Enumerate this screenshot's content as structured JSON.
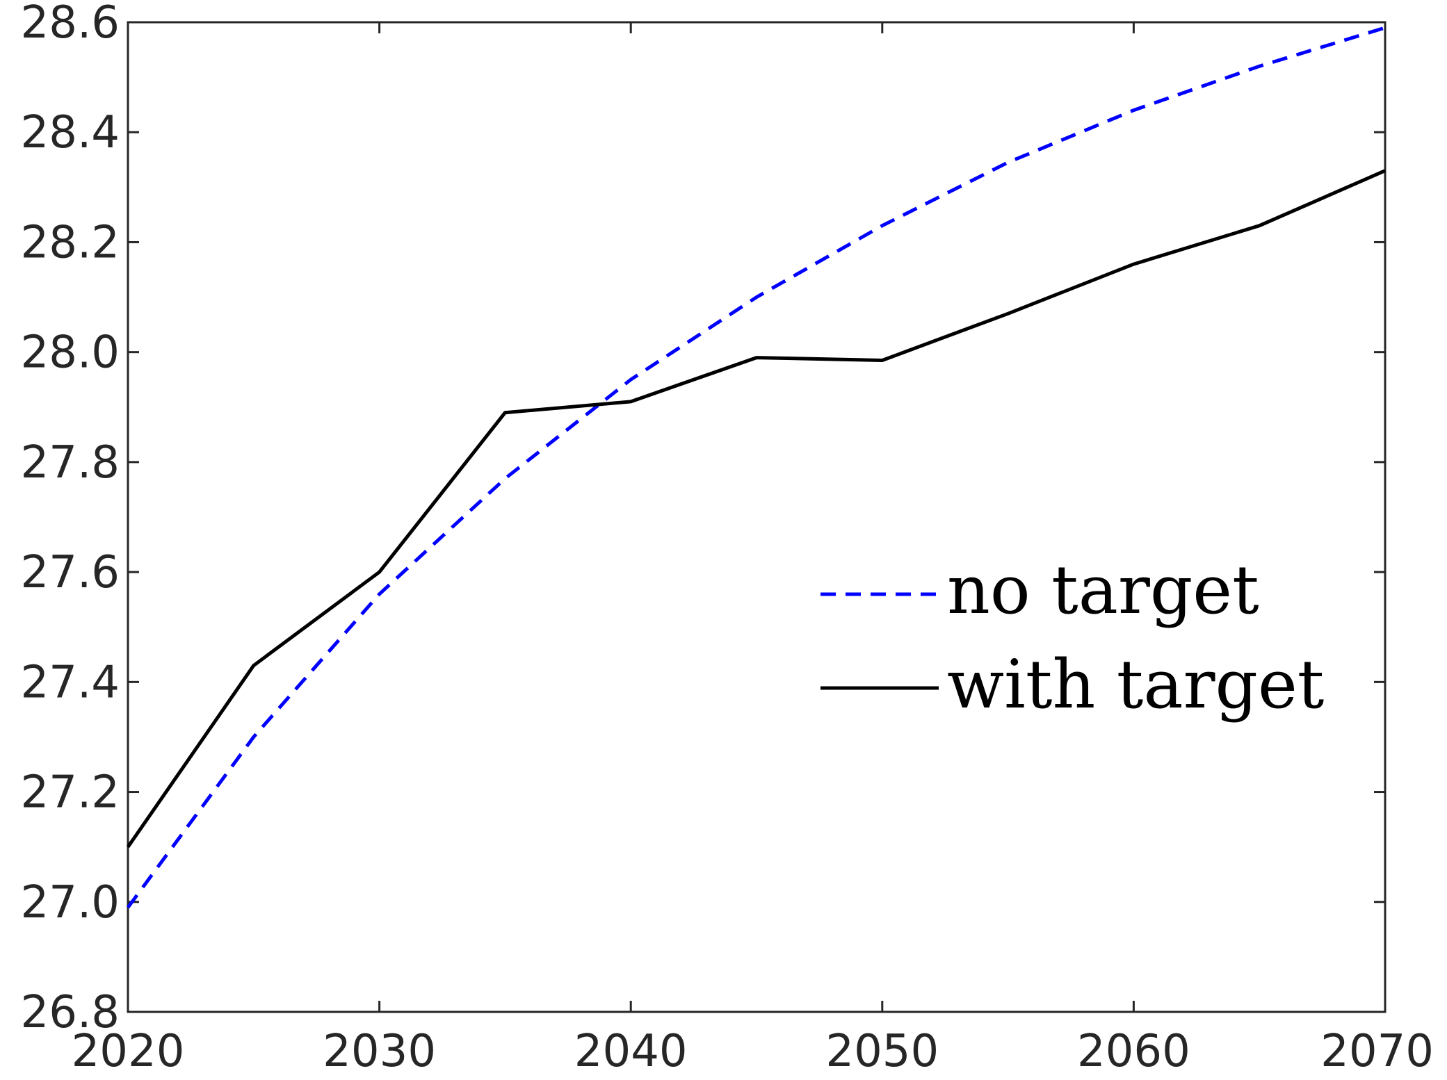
{
  "chart_data": {
    "type": "line",
    "title": "",
    "xlabel": "",
    "ylabel": "",
    "xlim": [
      2020,
      2070
    ],
    "ylim": [
      26.8,
      28.6
    ],
    "x_ticks": [
      2020,
      2030,
      2040,
      2050,
      2060,
      2070
    ],
    "y_ticks": [
      26.8,
      27.0,
      27.2,
      27.4,
      27.6,
      27.8,
      28.0,
      28.2,
      28.4,
      28.6
    ],
    "x_tick_labels": [
      "2020",
      "2030",
      "2040",
      "2050",
      "2060",
      "2070"
    ],
    "y_tick_labels": [
      "26.8",
      "27.0",
      "27.2",
      "27.4",
      "27.6",
      "27.8",
      "28.0",
      "28.2",
      "28.4",
      "28.6"
    ],
    "grid": false,
    "legend_position": "center-right",
    "series": [
      {
        "name": "no target",
        "color": "#0000ff",
        "style": "dashed",
        "x": [
          2020,
          2025,
          2030,
          2035,
          2040,
          2045,
          2050,
          2055,
          2060,
          2065,
          2070
        ],
        "y": [
          26.99,
          27.3,
          27.56,
          27.77,
          27.95,
          28.1,
          28.23,
          28.345,
          28.44,
          28.52,
          28.59
        ]
      },
      {
        "name": "with target",
        "color": "#000000",
        "style": "solid",
        "x": [
          2020,
          2025,
          2030,
          2035,
          2040,
          2045,
          2050,
          2055,
          2060,
          2065,
          2070
        ],
        "y": [
          27.1,
          27.43,
          27.6,
          27.89,
          27.91,
          27.99,
          27.985,
          28.07,
          28.16,
          28.23,
          28.33
        ]
      }
    ]
  }
}
